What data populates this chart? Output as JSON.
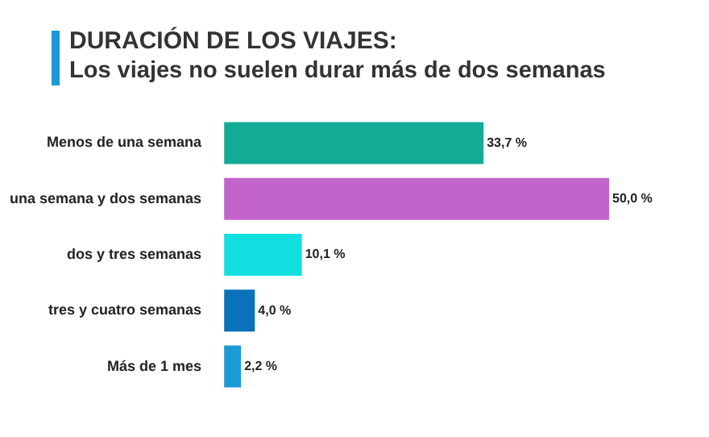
{
  "chart_data": {
    "type": "bar",
    "orientation": "horizontal",
    "title": "DURACIÓN DE LOS VIAJES:",
    "subtitle": "Los viajes no suelen durar más de dos semanas",
    "categories": [
      "Menos de una semana",
      "una semana y dos semanas",
      "dos y tres semanas",
      "tres y cuatro semanas",
      "Más de 1 mes"
    ],
    "values": [
      33.7,
      50.0,
      10.1,
      4.0,
      2.2
    ],
    "colors": [
      "#13ab95",
      "#c264cc",
      "#12dfe0",
      "#0a72b9",
      "#1b9ad6"
    ],
    "value_labels": [
      "33,7 %",
      "50,0 %",
      "10,1 %",
      "4,0 %",
      "2,2 %"
    ]
  }
}
